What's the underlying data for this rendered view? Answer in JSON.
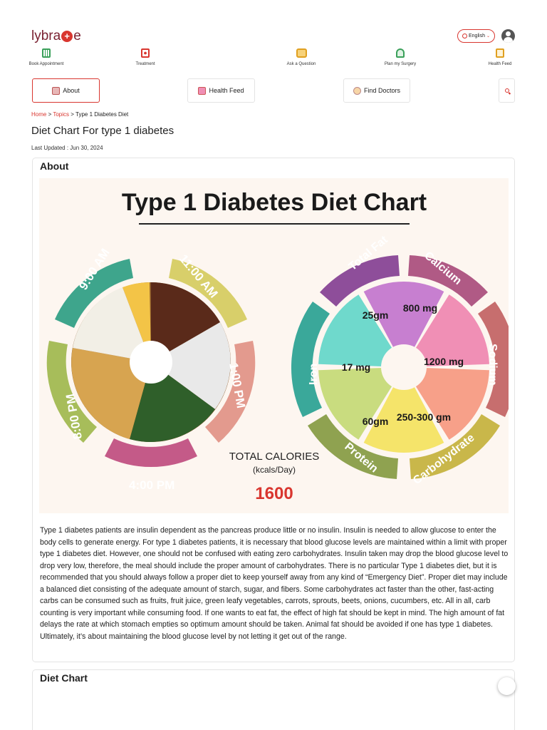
{
  "header": {
    "logo_left": "lybra",
    "logo_plus": "+",
    "logo_right": "e",
    "language": "English"
  },
  "topnav": [
    {
      "label": "Book Appointment",
      "icon": "calendar-icon"
    },
    {
      "label": "Treatment",
      "icon": "medical-box-icon"
    },
    {
      "label": "Ask a Question",
      "icon": "chat-icon"
    },
    {
      "label": "Plan my Surgery",
      "icon": "doctor-icon"
    },
    {
      "label": "Health Feed",
      "icon": "document-icon"
    }
  ],
  "tabs": [
    {
      "label": "About"
    },
    {
      "label": "Health Feed"
    },
    {
      "label": "Find Doctors"
    }
  ],
  "breadcrumb": {
    "home": "Home",
    "sep1": " > ",
    "topics": "Topics",
    "sep2": " > ",
    "current": "Type 1 Diabetes Diet"
  },
  "page": {
    "title": "Diet Chart For type 1 diabetes",
    "last_updated": "Last Updated : Jun 30, 2024"
  },
  "about": {
    "heading": "About",
    "infographic": {
      "title": "Type 1 Diabetes Diet Chart",
      "meal_times": [
        "9:00 AM",
        "11:00 AM",
        "1:00 PM",
        "4:00 PM",
        "8:00 PM"
      ],
      "total_calories_label": "TOTAL CALORIES",
      "total_calories_unit": "(kcals/Day)",
      "total_calories_value": "1600",
      "nutrients": [
        {
          "name": "Total Fat",
          "value": "25gm",
          "color": "#c77fd0"
        },
        {
          "name": "Calcium",
          "value": "800 mg",
          "color": "#f08fb5"
        },
        {
          "name": "Sodium",
          "value": "1200 mg",
          "color": "#f7a089"
        },
        {
          "name": "Carbohydrate",
          "value": "250-300 gm",
          "color": "#f5e46a"
        },
        {
          "name": "Protein",
          "value": "60gm",
          "color": "#c9dc7f"
        },
        {
          "name": "Iron",
          "value": "17 mg",
          "color": "#6fd9cc"
        }
      ]
    },
    "text": "Type 1 diabetes patients are insulin dependent as the pancreas produce little or no insulin. Insulin is needed to allow glucose to enter the body cells to generate energy. For type 1 diabetes patients, it is necessary that blood glucose levels are maintained within a limit with proper type 1 diabetes diet. However, one should not be confused with eating zero carbohydrates. Insulin taken may drop the blood glucose level to drop very low, therefore, the meal should include the proper amount of carbohydrates. There is no particular Type 1 diabetes diet, but it is recommended that you should always follow a proper diet to keep yourself away from any kind of “Emergency Diet”. Proper diet may include a balanced diet consisting of the adequate amount of starch, sugar, and fibers. Some carbohydrates act faster than the other, fast-acting carbs can be consumed such as fruits, fruit juice, green leafy vegetables, carrots, sprouts, beets, onions, cucumbers, etc. All in all, carb counting is very important while consuming food. If one wants to eat fat, the effect of high fat should be kept in mind. The high amount of fat delays the rate at which stomach empties so optimum amount should be taken. Animal fat should be avoided if one has type 1 diabetes. Ultimately, it’s about maintaining the blood glucose level by not letting it get out of the range."
  },
  "diet_chart": {
    "heading": "Diet Chart"
  },
  "colors": {
    "brand": "#d9362f",
    "logo": "#7a2131"
  }
}
